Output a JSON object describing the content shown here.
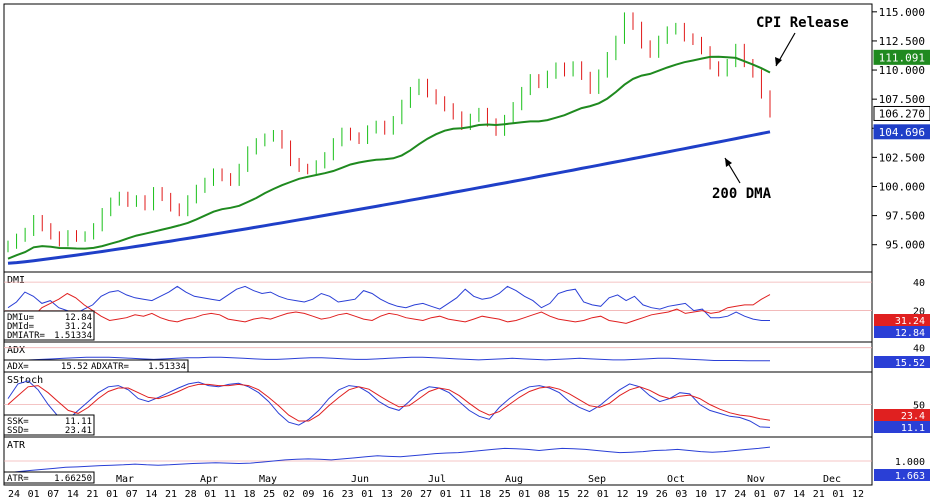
{
  "chart_data": {
    "type": "candlestick",
    "price_axis": {
      "ticks": [
        "115.000",
        "112.500",
        "110.000",
        "107.500",
        "105.000",
        "102.500",
        "100.000",
        "97.500",
        "95.000"
      ],
      "range": [
        93.0,
        115.5
      ]
    },
    "last_price": "106.270",
    "ma_50_value": "111.091",
    "ma_200_value": "104.696",
    "annotations": {
      "cpi": "CPI Release",
      "dma": "200 DMA"
    },
    "colors": {
      "up": "#18c018",
      "down": "#e01818",
      "ma50": "#1f8a1f",
      "ma200": "#1f3fc8",
      "blue_line": "#2a3fd6",
      "red_line": "#e02020",
      "last_box": "#ffffff"
    },
    "candles_close": [
      95.0,
      95.6,
      96.1,
      97.2,
      96.5,
      95.8,
      95.2,
      95.9,
      95.6,
      95.8,
      96.5,
      97.8,
      98.7,
      99.2,
      98.6,
      98.9,
      98.3,
      99.6,
      99.1,
      98.2,
      97.8,
      98.9,
      99.8,
      100.4,
      101.2,
      100.8,
      100.4,
      101.6,
      103.1,
      103.8,
      104.2,
      104.5,
      103.6,
      102.1,
      101.6,
      101.4,
      101.9,
      102.6,
      103.8,
      104.7,
      104.3,
      104.0,
      104.9,
      105.3,
      104.8,
      105.7,
      107.1,
      108.2,
      108.9,
      108.0,
      107.4,
      106.8,
      106.1,
      105.2,
      105.9,
      106.4,
      105.5,
      104.7,
      105.8,
      106.9,
      108.2,
      109.3,
      108.8,
      109.6,
      110.3,
      109.8,
      110.4,
      109.5,
      108.3,
      109.7,
      111.2,
      112.6,
      114.6,
      113.8,
      112.2,
      111.4,
      112.6,
      113.4,
      113.7,
      112.8,
      112.5,
      111.7,
      110.4,
      109.8,
      110.6,
      111.9,
      110.6,
      109.7,
      107.9,
      106.27
    ],
    "x_axis": {
      "day_labels": [
        "24",
        "01",
        "07",
        "14",
        "21",
        "01",
        "07",
        "14",
        "21",
        "28",
        "01",
        "11",
        "18",
        "25",
        "02",
        "09",
        "16",
        "23",
        "01",
        "13",
        "20",
        "27",
        "01",
        "11",
        "18",
        "25",
        "01",
        "08",
        "15",
        "22",
        "01",
        "12",
        "19",
        "26",
        "03",
        "10",
        "17",
        "24",
        "01",
        "07",
        "14",
        "21",
        "01",
        "12"
      ],
      "month_labels": [
        "Mar",
        "Apr",
        "May",
        "Jun",
        "Jul",
        "Aug",
        "Sep",
        "Oct",
        "Nov",
        "Dec"
      ]
    },
    "panels": [
      {
        "name": "DMI",
        "axis": [
          "40",
          "20"
        ],
        "readout": [
          {
            "label": "DMIu=",
            "value": "12.84"
          },
          {
            "label": "DMId=",
            "value": "31.24"
          },
          {
            "label": "DMIATR=",
            "value": "1.51334"
          }
        ],
        "badges": [
          {
            "value": "31.24",
            "color": "#e02020"
          },
          {
            "value": "12.84",
            "color": "#2a3fd6"
          }
        ],
        "series": [
          {
            "color": "#2a3fd6",
            "values": [
              22,
              26,
              33,
              30,
              25,
              27,
              22,
              20,
              18,
              21,
              24,
              30,
              33,
              34,
              31,
              29,
              28,
              27,
              30,
              33,
              37,
              33,
              30,
              29,
              28,
              27,
              31,
              35,
              37,
              34,
              32,
              33,
              30,
              28,
              27,
              26,
              28,
              32,
              30,
              26,
              27,
              28,
              34,
              32,
              28,
              25,
              23,
              22,
              24,
              25,
              23,
              21,
              25,
              29,
              35,
              30,
              28,
              29,
              32,
              37,
              34,
              30,
              27,
              22,
              25,
              32,
              34,
              35,
              26,
              24,
              23,
              29,
              31,
              27,
              30,
              24,
              22,
              21,
              23,
              24,
              25,
              20,
              21,
              15,
              15,
              16,
              19,
              16,
              14,
              13,
              13
            ]
          },
          {
            "color": "#e02020",
            "values": [
              18,
              16,
              14,
              16,
              22,
              25,
              28,
              32,
              29,
              24,
              20,
              16,
              13,
              14,
              15,
              17,
              16,
              18,
              15,
              13,
              12,
              14,
              15,
              17,
              18,
              17,
              14,
              13,
              12,
              14,
              15,
              14,
              16,
              18,
              19,
              18,
              16,
              14,
              15,
              17,
              18,
              16,
              14,
              13,
              16,
              18,
              17,
              15,
              14,
              13,
              15,
              16,
              14,
              13,
              12,
              14,
              16,
              15,
              14,
              12,
              13,
              15,
              17,
              19,
              16,
              14,
              13,
              12,
              13,
              15,
              16,
              13,
              12,
              11,
              13,
              15,
              17,
              18,
              19,
              21,
              18,
              19,
              20,
              18,
              19,
              22,
              23,
              24,
              24,
              28,
              31.24
            ]
          }
        ]
      },
      {
        "name": "ADX",
        "axis": [
          "40"
        ],
        "readout": [
          {
            "label": "ADX=",
            "value": "15.52"
          },
          {
            "label": "ADXATR=",
            "value": "1.51334"
          }
        ],
        "badges": [
          {
            "value": "15.52",
            "color": "#2a3fd6"
          }
        ],
        "series": [
          {
            "color": "#2a3fd6",
            "values": [
              15,
              16,
              17,
              18,
              19,
              20,
              21,
              22,
              22,
              22,
              21,
              20,
              19,
              18,
              19,
              20,
              21,
              21,
              22,
              22,
              21,
              20,
              19,
              18,
              18,
              19,
              20,
              21,
              21,
              20,
              19,
              18,
              18,
              19,
              20,
              21,
              22,
              22,
              21,
              20,
              19,
              18,
              17,
              18,
              19,
              20,
              19,
              18,
              17,
              18,
              19,
              20,
              19,
              18,
              17,
              17,
              18,
              19,
              20,
              20,
              19,
              18,
              17,
              16,
              16,
              16,
              15.5,
              15.5,
              15.5
            ]
          }
        ]
      },
      {
        "name": "SStoch",
        "axis": [
          "50"
        ],
        "readout": [
          {
            "label": "SSK=",
            "value": "11.11"
          },
          {
            "label": "SSD=",
            "value": "23.41"
          }
        ],
        "badges": [
          {
            "value": "23.4",
            "color": "#e02020"
          },
          {
            "value": "11.1",
            "color": "#2a3fd6"
          }
        ],
        "series": [
          {
            "color": "#2a3fd6",
            "values": [
              60,
              85,
              90,
              75,
              50,
              30,
              25,
              40,
              55,
              70,
              80,
              82,
              75,
              60,
              55,
              62,
              70,
              78,
              85,
              88,
              82,
              80,
              84,
              86,
              80,
              70,
              55,
              35,
              20,
              15,
              25,
              40,
              60,
              75,
              82,
              80,
              70,
              55,
              45,
              40,
              55,
              72,
              80,
              78,
              70,
              55,
              40,
              30,
              25,
              45,
              60,
              72,
              80,
              82,
              78,
              70,
              55,
              45,
              38,
              48,
              62,
              75,
              85,
              80,
              65,
              55,
              60,
              70,
              68,
              50,
              40,
              35,
              30,
              28,
              22,
              12,
              11.11
            ]
          },
          {
            "color": "#e02020",
            "values": [
              50,
              65,
              80,
              82,
              70,
              55,
              40,
              35,
              45,
              60,
              72,
              78,
              78,
              70,
              62,
              60,
              65,
              72,
              80,
              84,
              84,
              82,
              82,
              84,
              82,
              75,
              62,
              48,
              32,
              22,
              22,
              32,
              48,
              62,
              75,
              80,
              76,
              65,
              55,
              46,
              48,
              60,
              72,
              78,
              75,
              65,
              52,
              40,
              32,
              38,
              50,
              62,
              72,
              78,
              80,
              76,
              68,
              58,
              48,
              45,
              52,
              65,
              75,
              80,
              74,
              65,
              60,
              64,
              66,
              60,
              50,
              42,
              36,
              32,
              30,
              26,
              23.41
            ]
          }
        ]
      },
      {
        "name": "ATR",
        "axis": [
          "1.000"
        ],
        "readout": [
          {
            "label": "ATR=",
            "value": "1.66250"
          }
        ],
        "badges": [
          {
            "value": "1.663",
            "color": "#2a3fd6"
          }
        ],
        "series": [
          {
            "color": "#2a3fd6",
            "values": [
              0.45,
              0.5,
              0.55,
              0.6,
              0.65,
              0.7,
              0.72,
              0.75,
              0.78,
              0.8,
              0.82,
              0.85,
              0.82,
              0.8,
              0.82,
              0.85,
              0.88,
              0.9,
              0.92,
              0.9,
              0.88,
              0.9,
              0.95,
              1.0,
              1.05,
              1.08,
              1.1,
              1.08,
              1.05,
              1.1,
              1.15,
              1.2,
              1.25,
              1.22,
              1.2,
              1.25,
              1.3,
              1.35,
              1.38,
              1.4,
              1.45,
              1.5,
              1.55,
              1.6,
              1.58,
              1.55,
              1.5,
              1.55,
              1.6,
              1.58,
              1.55,
              1.5,
              1.45,
              1.4,
              1.42,
              1.45,
              1.5,
              1.52,
              1.55,
              1.5,
              1.45,
              1.42,
              1.45,
              1.5,
              1.55,
              1.6,
              1.663
            ]
          }
        ]
      }
    ]
  }
}
